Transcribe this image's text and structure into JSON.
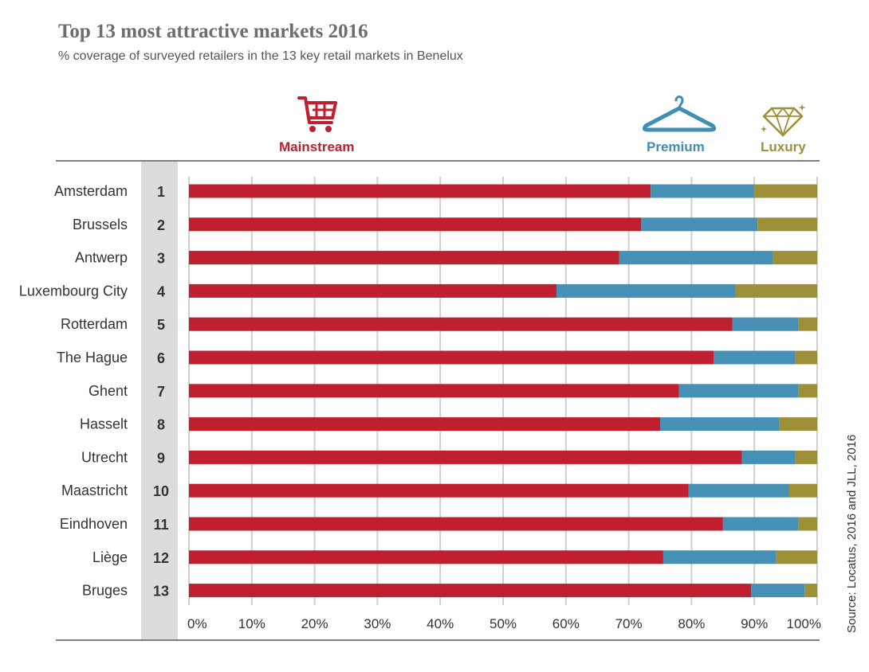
{
  "title": "Top 13 most attractive markets 2016",
  "subtitle": "% coverage of surveyed retailers in the 13 key retail markets in Benelux",
  "source": "Source: Locatus, 2016 and JLL, 2016",
  "legend": {
    "mainstream": "Mainstream",
    "premium": "Premium",
    "luxury": "Luxury"
  },
  "icons": {
    "mainstream": "shopping-cart-icon",
    "premium": "hanger-icon",
    "luxury": "diamond-icon"
  },
  "colors": {
    "mainstream": "#c01f2f",
    "premium": "#4590b4",
    "luxury": "#9e9038",
    "rank_band": "#dcdcdc",
    "grid": "#cfcfcf",
    "rule": "#555555"
  },
  "chart_data": {
    "type": "bar",
    "orientation": "horizontal",
    "stacked": true,
    "categories": [
      "Amsterdam",
      "Brussels",
      "Antwerp",
      "Luxembourg City",
      "Rotterdam",
      "The Hague",
      "Ghent",
      "Hasselt",
      "Utrecht",
      "Maastricht",
      "Eindhoven",
      "Liège",
      "Bruges"
    ],
    "ranks": [
      "1",
      "2",
      "3",
      "4",
      "5",
      "6",
      "7",
      "8",
      "9",
      "10",
      "11",
      "12",
      "13"
    ],
    "series": [
      {
        "name": "Mainstream",
        "values": [
          73.5,
          72,
          68.5,
          58.5,
          86.5,
          83.5,
          78,
          75,
          88,
          79.5,
          85,
          75.5,
          89.5
        ]
      },
      {
        "name": "Premium",
        "values": [
          16.5,
          18.5,
          24.5,
          28.5,
          10.5,
          13,
          19,
          19,
          8.5,
          16,
          12,
          18,
          8.5
        ]
      },
      {
        "name": "Luxury",
        "values": [
          10,
          9.5,
          7,
          13,
          3,
          3.5,
          3,
          6,
          3.5,
          4.5,
          3,
          6.5,
          2
        ]
      }
    ],
    "xlim": [
      0,
      100
    ],
    "xticks": [
      "0%",
      "10%",
      "20%",
      "30%",
      "40%",
      "50%",
      "60%",
      "70%",
      "80%",
      "90%",
      "100%"
    ],
    "grid": true,
    "legend_position": "top"
  }
}
